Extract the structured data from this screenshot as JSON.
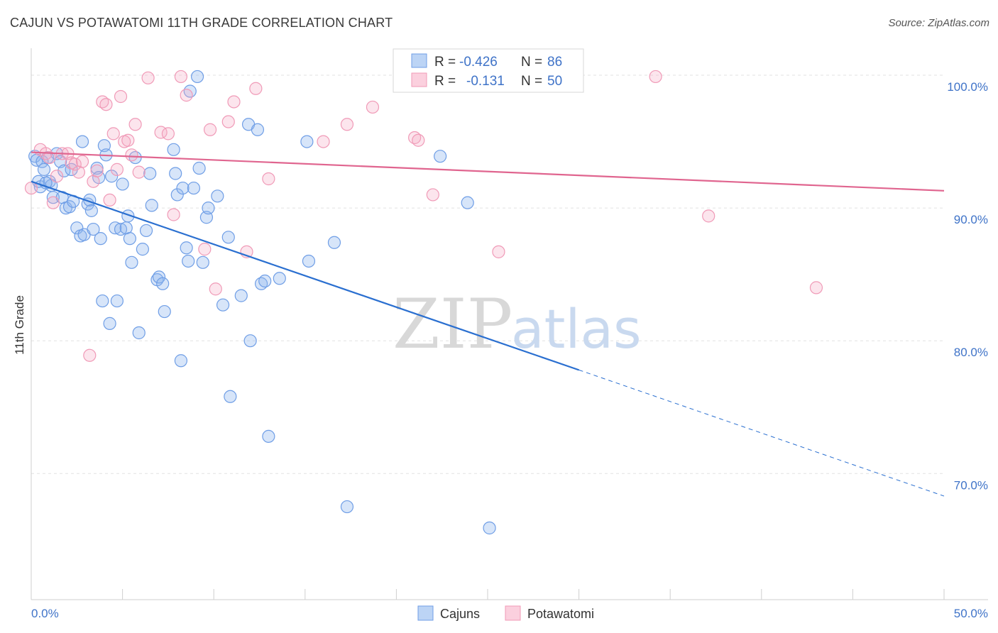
{
  "header": {
    "title": "CAJUN VS POTAWATOMI 11TH GRADE CORRELATION CHART",
    "source": "Source: ZipAtlas.com"
  },
  "watermark": {
    "zip": "ZIP",
    "atlas": "atlas"
  },
  "chart_data": {
    "type": "scatter",
    "title": "CAJUN VS POTAWATOMI 11TH GRADE CORRELATION CHART",
    "ylabel": "11th Grade",
    "xlabel": "",
    "xlim": [
      0,
      50
    ],
    "ylim": [
      60.5,
      101.5
    ],
    "x_tick_labels": [
      {
        "value": 0,
        "label": "0.0%"
      },
      {
        "value": 50,
        "label": "50.0%"
      }
    ],
    "y_tick_labels": [
      {
        "value": 100,
        "label": "100.0%"
      },
      {
        "value": 90,
        "label": "90.0%"
      },
      {
        "value": 80,
        "label": "80.0%"
      },
      {
        "value": 70,
        "label": "70.0%"
      }
    ],
    "grid": true,
    "legend_position": "bottom-center",
    "colors": {
      "cajuns": "#6f9ee6",
      "potawatomi": "#f09ab7",
      "cajuns_line": "#2a6fd0",
      "potawatomi_line": "#e0658f"
    },
    "stats": [
      {
        "series": "cajuns",
        "r_label": "R =",
        "r": "-0.426",
        "n_label": "N =",
        "n": "86"
      },
      {
        "series": "potawatomi",
        "r_label": "R =",
        "r": "-0.131",
        "n_label": "N =",
        "n": "50"
      }
    ],
    "series": [
      {
        "name": "Cajuns",
        "key": "cajuns",
        "trend": {
          "x1": 0,
          "y1": 92.0,
          "x2": 30,
          "y2": 77.8,
          "dash_to_x": 50,
          "dash_to_y": 68.3
        },
        "points": [
          [
            0.2,
            93.9
          ],
          [
            0.3,
            93.6
          ],
          [
            0.4,
            92.0
          ],
          [
            0.5,
            91.6
          ],
          [
            0.6,
            93.5
          ],
          [
            0.7,
            92.9
          ],
          [
            0.9,
            93.8
          ],
          [
            1.0,
            92.0
          ],
          [
            1.1,
            91.7
          ],
          [
            1.2,
            90.8
          ],
          [
            1.4,
            94.1
          ],
          [
            1.6,
            93.5
          ],
          [
            1.7,
            90.8
          ],
          [
            1.8,
            92.8
          ],
          [
            1.9,
            90.0
          ],
          [
            2.1,
            90.1
          ],
          [
            2.2,
            92.9
          ],
          [
            2.3,
            90.5
          ],
          [
            2.5,
            88.5
          ],
          [
            2.7,
            87.9
          ],
          [
            2.8,
            95.0
          ],
          [
            2.9,
            88.0
          ],
          [
            3.1,
            90.3
          ],
          [
            3.2,
            90.6
          ],
          [
            3.3,
            89.8
          ],
          [
            3.4,
            88.4
          ],
          [
            3.6,
            93.0
          ],
          [
            3.7,
            92.3
          ],
          [
            3.8,
            87.7
          ],
          [
            3.9,
            83.0
          ],
          [
            4.0,
            94.7
          ],
          [
            4.1,
            94.0
          ],
          [
            4.3,
            81.3
          ],
          [
            4.4,
            92.4
          ],
          [
            4.6,
            88.5
          ],
          [
            4.7,
            83.0
          ],
          [
            4.9,
            88.4
          ],
          [
            5.0,
            91.8
          ],
          [
            5.2,
            88.5
          ],
          [
            5.3,
            89.4
          ],
          [
            5.4,
            87.7
          ],
          [
            5.5,
            85.9
          ],
          [
            5.7,
            93.8
          ],
          [
            5.9,
            80.6
          ],
          [
            6.1,
            86.9
          ],
          [
            6.3,
            88.3
          ],
          [
            6.5,
            92.6
          ],
          [
            6.6,
            90.2
          ],
          [
            6.9,
            84.6
          ],
          [
            7.0,
            84.8
          ],
          [
            7.2,
            84.3
          ],
          [
            7.3,
            82.2
          ],
          [
            7.8,
            94.4
          ],
          [
            7.9,
            92.6
          ],
          [
            8.0,
            91.0
          ],
          [
            8.2,
            78.5
          ],
          [
            8.3,
            91.5
          ],
          [
            8.5,
            87.0
          ],
          [
            8.6,
            86.0
          ],
          [
            8.7,
            98.8
          ],
          [
            8.9,
            91.5
          ],
          [
            9.1,
            99.9
          ],
          [
            9.2,
            93.0
          ],
          [
            9.4,
            85.9
          ],
          [
            9.6,
            89.3
          ],
          [
            9.7,
            90.0
          ],
          [
            10.2,
            90.9
          ],
          [
            10.5,
            82.7
          ],
          [
            10.8,
            87.8
          ],
          [
            10.9,
            75.8
          ],
          [
            11.5,
            83.4
          ],
          [
            11.9,
            96.3
          ],
          [
            12.0,
            80.0
          ],
          [
            12.4,
            95.9
          ],
          [
            12.6,
            84.3
          ],
          [
            12.8,
            84.5
          ],
          [
            13.0,
            72.8
          ],
          [
            13.6,
            84.7
          ],
          [
            15.1,
            95.0
          ],
          [
            15.2,
            86.0
          ],
          [
            16.6,
            87.4
          ],
          [
            17.3,
            67.5
          ],
          [
            22.4,
            93.9
          ],
          [
            23.9,
            90.4
          ],
          [
            25.1,
            65.9
          ],
          [
            0.8,
            91.9
          ]
        ]
      },
      {
        "name": "Potawatomi",
        "key": "potawatomi",
        "trend": {
          "x1": 0,
          "y1": 94.2,
          "x2": 50,
          "y2": 91.3
        },
        "points": [
          [
            0.0,
            91.5
          ],
          [
            0.5,
            94.4
          ],
          [
            0.8,
            94.1
          ],
          [
            1.0,
            93.8
          ],
          [
            1.2,
            90.4
          ],
          [
            1.4,
            92.4
          ],
          [
            1.7,
            94.1
          ],
          [
            2.0,
            94.1
          ],
          [
            2.2,
            93.4
          ],
          [
            2.4,
            93.3
          ],
          [
            2.6,
            92.7
          ],
          [
            2.8,
            93.5
          ],
          [
            3.2,
            78.9
          ],
          [
            3.4,
            92.0
          ],
          [
            3.6,
            92.8
          ],
          [
            3.9,
            98.0
          ],
          [
            4.1,
            97.8
          ],
          [
            4.3,
            90.6
          ],
          [
            4.5,
            95.6
          ],
          [
            4.7,
            92.9
          ],
          [
            4.9,
            98.4
          ],
          [
            5.1,
            95.0
          ],
          [
            5.3,
            95.1
          ],
          [
            5.5,
            94.0
          ],
          [
            5.7,
            96.3
          ],
          [
            5.9,
            92.7
          ],
          [
            6.4,
            99.8
          ],
          [
            7.1,
            95.7
          ],
          [
            7.5,
            95.6
          ],
          [
            7.8,
            89.5
          ],
          [
            8.2,
            99.9
          ],
          [
            8.5,
            98.5
          ],
          [
            9.5,
            86.9
          ],
          [
            9.8,
            95.9
          ],
          [
            10.1,
            83.9
          ],
          [
            10.8,
            96.5
          ],
          [
            11.1,
            98.0
          ],
          [
            11.8,
            86.7
          ],
          [
            12.3,
            99.0
          ],
          [
            13.0,
            92.2
          ],
          [
            16.0,
            95.0
          ],
          [
            17.3,
            96.3
          ],
          [
            18.7,
            97.6
          ],
          [
            21.0,
            95.3
          ],
          [
            21.2,
            95.1
          ],
          [
            22.0,
            91.0
          ],
          [
            25.6,
            86.7
          ],
          [
            34.2,
            99.9
          ],
          [
            37.1,
            89.4
          ],
          [
            43.0,
            84.0
          ]
        ]
      }
    ]
  }
}
